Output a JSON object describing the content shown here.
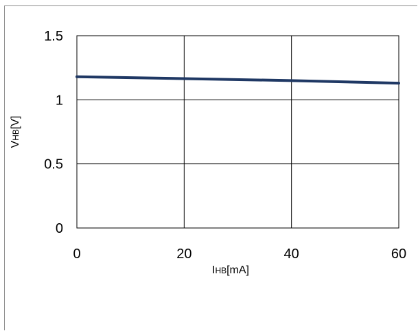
{
  "chart_data": {
    "type": "line",
    "xlabel": {
      "main": "I",
      "sub": "HB",
      "unit": "[mA]"
    },
    "ylabel": {
      "main": "V",
      "sub": "HB",
      "unit": "[V]"
    },
    "xlim": [
      0,
      60
    ],
    "ylim": [
      0,
      1.5
    ],
    "x_ticks": [
      "0",
      "20",
      "40",
      "60"
    ],
    "y_ticks": [
      "0",
      "0.5",
      "1",
      "1.5"
    ],
    "grid": true,
    "legend": "none",
    "series": [
      {
        "color": "#1f3864",
        "x": [
          0,
          20,
          40,
          60
        ],
        "y": [
          1.18,
          1.165,
          1.15,
          1.13
        ]
      }
    ]
  }
}
